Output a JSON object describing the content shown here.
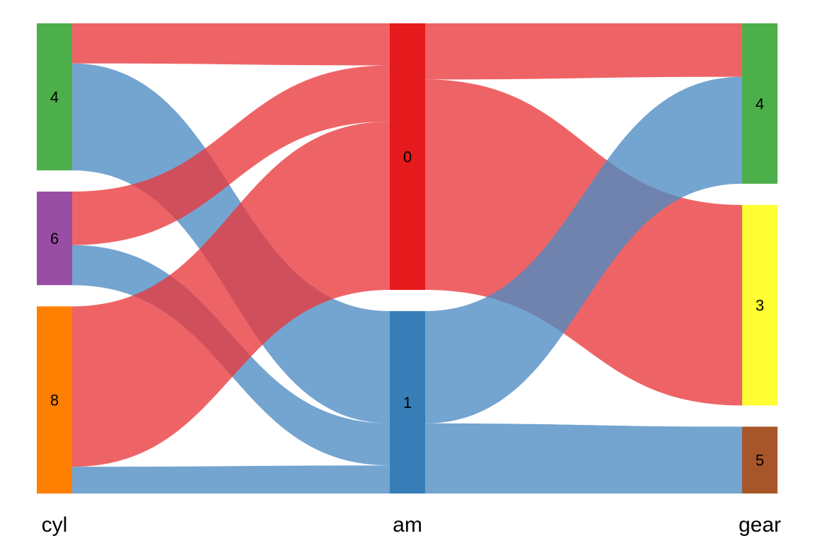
{
  "chart_data": {
    "type": "sankey",
    "source": "mtcars",
    "axes": [
      {
        "name": "cyl",
        "categories": [
          "4",
          "6",
          "8"
        ]
      },
      {
        "name": "am",
        "categories": [
          "0",
          "1"
        ]
      },
      {
        "name": "gear",
        "categories": [
          "4",
          "3",
          "5"
        ]
      }
    ],
    "node_colors": {
      "cyl": {
        "4": "#4daf4a",
        "6": "#984ea3",
        "8": "#ff7f00"
      },
      "am": {
        "0": "#e41a1c",
        "1": "#377eb8"
      },
      "gear": {
        "4": "#4daf4a",
        "3": "#ffff33",
        "5": "#a65628"
      }
    },
    "flow_colors": {
      "0": "#e9393b",
      "1": "#4d8ac3"
    },
    "flows_cyl_am": [
      {
        "cyl": "4",
        "am": "0",
        "count": 3
      },
      {
        "cyl": "4",
        "am": "1",
        "count": 8
      },
      {
        "cyl": "6",
        "am": "0",
        "count": 4
      },
      {
        "cyl": "6",
        "am": "1",
        "count": 3
      },
      {
        "cyl": "8",
        "am": "0",
        "count": 12
      },
      {
        "cyl": "8",
        "am": "1",
        "count": 2
      }
    ],
    "flows_am_gear": [
      {
        "am": "0",
        "gear": "4",
        "count": 4
      },
      {
        "am": "0",
        "gear": "3",
        "count": 15
      },
      {
        "am": "1",
        "gear": "4",
        "count": 8
      },
      {
        "am": "1",
        "gear": "5",
        "count": 5
      }
    ]
  }
}
